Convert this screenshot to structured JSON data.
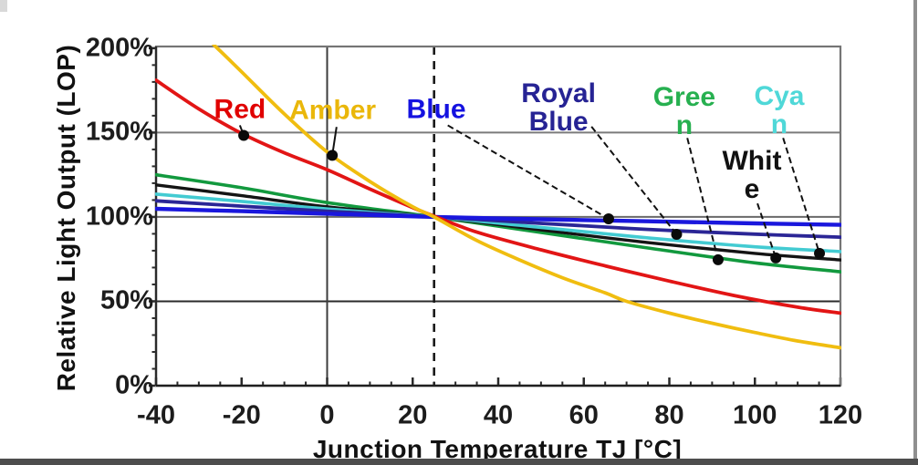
{
  "chart_data": {
    "type": "line",
    "title": "",
    "xlabel": "Junction Temperature TJ [°C]",
    "ylabel": "Relative Light Output (LOP)",
    "xlim": [
      -40,
      120
    ],
    "ylim": [
      0,
      201
    ],
    "grid": "horizontal-major",
    "legend_position": "inline-callouts",
    "x_ticks": [
      {
        "value": -40,
        "label": "-40"
      },
      {
        "value": -20,
        "label": "-20"
      },
      {
        "value": 0,
        "label": "0"
      },
      {
        "value": 20,
        "label": "20"
      },
      {
        "value": 40,
        "label": "40"
      },
      {
        "value": 60,
        "label": "60"
      },
      {
        "value": 80,
        "label": "80"
      },
      {
        "value": 100,
        "label": "100"
      },
      {
        "value": 120,
        "label": "120"
      }
    ],
    "y_ticks": [
      {
        "value": 0,
        "label": "0%"
      },
      {
        "value": 50,
        "label": "50%"
      },
      {
        "value": 100,
        "label": "100%"
      },
      {
        "value": 150,
        "label": "150%"
      },
      {
        "value": 200,
        "label": "200%"
      }
    ],
    "x_minor_step": 5,
    "y_minor_step": 10,
    "gridlines_y": [
      {
        "value": 150,
        "color": "#7b7b7b",
        "width": 2
      },
      {
        "value": 100,
        "color": "#6a6a6a",
        "width": 2
      },
      {
        "value": 50,
        "color": "#2b2b2b",
        "width": 2
      }
    ],
    "vline_solid_x": 0,
    "vline_dashed_x": 25,
    "series": [
      {
        "id": "green",
        "name": "Green",
        "color": "#12993e",
        "width": 3.6,
        "points": [
          [
            -40,
            125
          ],
          [
            -20,
            117.3
          ],
          [
            0,
            108.5
          ],
          [
            25,
            100
          ],
          [
            50,
            90.8
          ],
          [
            75,
            81.6
          ],
          [
            100,
            72.8
          ],
          [
            120,
            67.5
          ]
        ]
      },
      {
        "id": "white",
        "name": "White",
        "color": "#141414",
        "width": 3.4,
        "points": [
          [
            -40,
            119
          ],
          [
            -20,
            112.6
          ],
          [
            0,
            106
          ],
          [
            25,
            100
          ],
          [
            50,
            92.3
          ],
          [
            75,
            84.8
          ],
          [
            100,
            78.4
          ],
          [
            120,
            74.5
          ]
        ]
      },
      {
        "id": "cyan",
        "name": "Cyan",
        "color": "#43cbd2",
        "width": 3.6,
        "points": [
          [
            -40,
            113.5
          ],
          [
            -20,
            109.2
          ],
          [
            0,
            104.7
          ],
          [
            25,
            100
          ],
          [
            50,
            93.8
          ],
          [
            75,
            87.6
          ],
          [
            100,
            82.3
          ],
          [
            120,
            79.5
          ]
        ]
      },
      {
        "id": "royal-blue",
        "name": "Royal Blue",
        "color": "#2b2696",
        "width": 3.8,
        "points": [
          [
            -40,
            109.5
          ],
          [
            -20,
            106.4
          ],
          [
            0,
            103.4
          ],
          [
            25,
            100
          ],
          [
            50,
            96.2
          ],
          [
            75,
            92.6
          ],
          [
            100,
            89.8
          ],
          [
            120,
            88
          ]
        ]
      },
      {
        "id": "blue",
        "name": "Blue",
        "color": "#1a17dd",
        "width": 4.4,
        "points": [
          [
            -40,
            104.8
          ],
          [
            -20,
            103.4
          ],
          [
            0,
            101.9
          ],
          [
            25,
            100
          ],
          [
            50,
            98.6
          ],
          [
            75,
            97.4
          ],
          [
            100,
            96.2
          ],
          [
            120,
            95.3
          ]
        ]
      },
      {
        "id": "red",
        "name": "Red",
        "color": "#e21515",
        "width": 3.8,
        "points": [
          [
            -40,
            181
          ],
          [
            -30,
            164
          ],
          [
            -20,
            149.5
          ],
          [
            -10,
            138
          ],
          [
            0,
            128
          ],
          [
            10,
            116.5
          ],
          [
            20,
            105.5
          ],
          [
            25,
            100.5
          ],
          [
            35,
            91
          ],
          [
            50,
            80.5
          ],
          [
            65,
            71
          ],
          [
            80,
            62
          ],
          [
            95,
            53.5
          ],
          [
            110,
            46.5
          ],
          [
            120,
            43
          ]
        ]
      },
      {
        "id": "amber",
        "name": "Amber",
        "color": "#f0bd10",
        "width": 3.8,
        "points": [
          [
            -26.5,
            202
          ],
          [
            -20,
            186
          ],
          [
            -10,
            161
          ],
          [
            0,
            138.5
          ],
          [
            10,
            121
          ],
          [
            20,
            106
          ],
          [
            25,
            100
          ],
          [
            35,
            86
          ],
          [
            45,
            74.5
          ],
          [
            55,
            64
          ],
          [
            65,
            55
          ],
          [
            70,
            50
          ],
          [
            80,
            43
          ],
          [
            90,
            37
          ],
          [
            100,
            31.5
          ],
          [
            110,
            26.5
          ],
          [
            120,
            22.5
          ]
        ]
      }
    ],
    "annotations": [
      {
        "id": "red",
        "text": "Red",
        "label_color": "#e00000",
        "label_at": [
          -20.4,
          163.8
        ],
        "leader_from": [
          -20.4,
          154.3
        ],
        "dot": [
          -19.5,
          148.3
        ]
      },
      {
        "id": "amber",
        "text": "Amber",
        "label_color": "#eab70a",
        "label_at": [
          1.3,
          163.4
        ],
        "leader_from": [
          2.2,
          153.3
        ],
        "dot": [
          1.2,
          136.5
        ]
      },
      {
        "id": "blue",
        "text": "Blue",
        "label_color": "#1512e0",
        "label_at": [
          25.5,
          163.8
        ],
        "leader_from": [
          28.2,
          154.3
        ],
        "dot": [
          65.8,
          98.9
        ]
      },
      {
        "id": "royal-blue",
        "text": "Royal\nBlue",
        "label_color": "#262394",
        "label_at": [
          54.1,
          164.8
        ],
        "leader_from": [
          61.8,
          153.5
        ],
        "dot": [
          81.7,
          89.7
        ]
      },
      {
        "id": "green",
        "text": "Gree\nn",
        "label_color": "#27b050",
        "label_at": [
          83.5,
          162.7
        ],
        "leader_from": [
          84.2,
          146.8
        ],
        "dot": [
          91.4,
          74.6
        ]
      },
      {
        "id": "cyan",
        "text": "Cya\nn",
        "label_color": "#4fd8d8",
        "label_at": [
          105.7,
          163.2
        ],
        "leader_from": [
          106.6,
          146.8
        ],
        "dot": [
          115.1,
          78.4
        ]
      },
      {
        "id": "white",
        "text": "Whit\ne",
        "label_color": "#111111",
        "label_at": [
          99.3,
          124.8
        ],
        "leader_from": [
          100.6,
          108.0
        ],
        "dot": [
          104.9,
          75.7
        ]
      }
    ],
    "style": {
      "plot_border_color": "#757575",
      "axis_color": "#2a2a2a",
      "vline_solid_color": "#3c3c3c",
      "vline_dashed_color": "#1a1a1a",
      "leader_color": "#111111",
      "dot_color": "#0a0a0a",
      "dot_radius": 6
    }
  }
}
